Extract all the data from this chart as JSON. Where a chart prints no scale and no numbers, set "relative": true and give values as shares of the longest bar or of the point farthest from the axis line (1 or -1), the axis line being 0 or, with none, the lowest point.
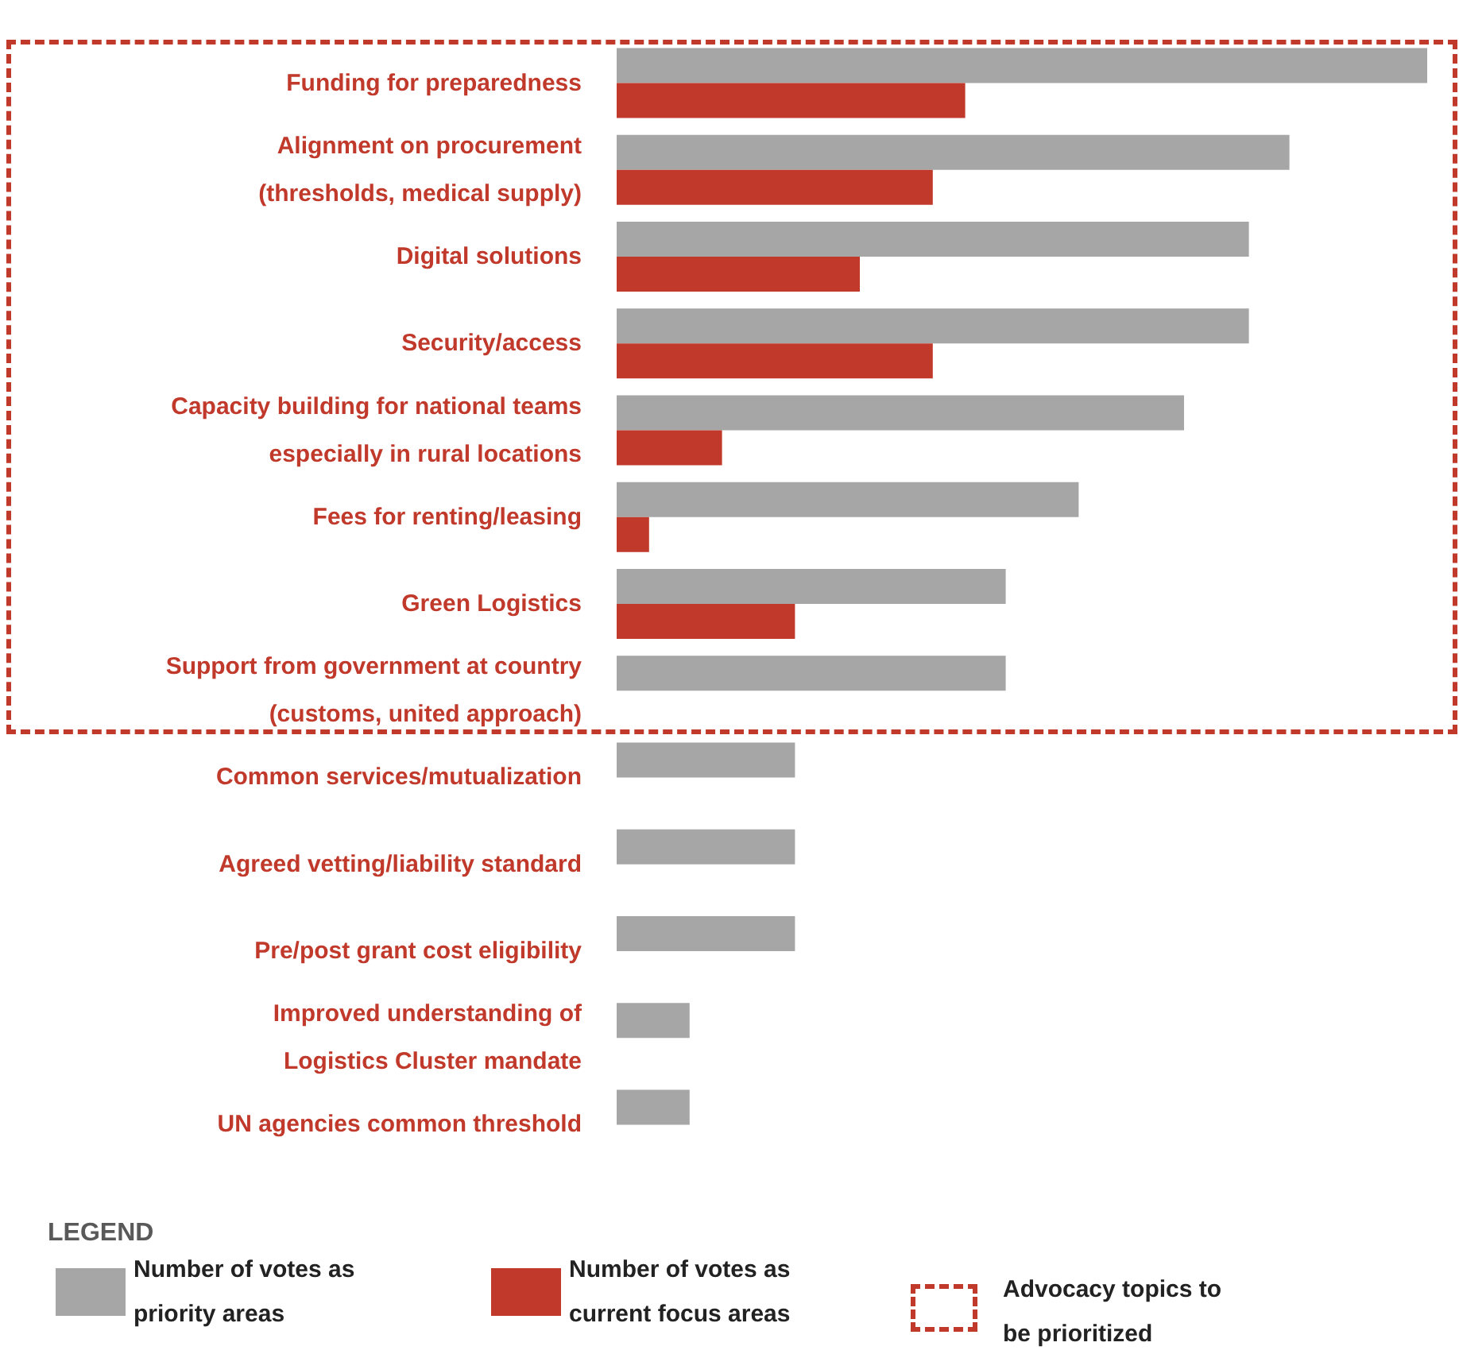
{
  "chart_data": {
    "type": "bar",
    "orientation": "horizontal",
    "relative": true,
    "categories": [
      "Funding for preparedness",
      "Alignment on procurement\n(thresholds, medical supply)",
      "Digital solutions",
      "Security/access",
      "Capacity building for national teams\nespecially in rural locations",
      "Fees for renting/leasing",
      "Green Logistics",
      "Support from government at country\n(customs, united approach)",
      "Common services/mutualization",
      "Agreed vetting/liability standard",
      "Pre/post grant cost eligibility",
      "Improved understanding of\nLogistics Cluster mandate",
      "UN agencies common threshold"
    ],
    "series": [
      {
        "name": "Number of votes as priority areas",
        "color": "#a6a6a6",
        "values": [
          1,
          0.83,
          0.78,
          0.78,
          0.7,
          0.57,
          0.48,
          0.48,
          0.22,
          0.22,
          0.22,
          0.09,
          0.09
        ]
      },
      {
        "name": "Number of votes as current focus areas",
        "color": "#c0392b",
        "values": [
          0.43,
          0.39,
          0.3,
          0.39,
          0.13,
          0.04,
          0.22,
          null,
          null,
          null,
          null,
          null,
          null
        ]
      }
    ],
    "annotations": [
      "Advocacy topics to be prioritized"
    ],
    "legend": "bottom",
    "legend_title": "LEGEND"
  }
}
